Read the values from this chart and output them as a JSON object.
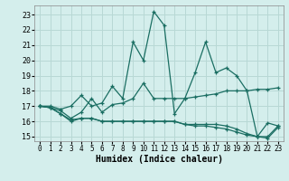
{
  "title": "",
  "xlabel": "Humidex (Indice chaleur)",
  "bg_color": "#d4eeec",
  "grid_color": "#b8d8d5",
  "line_color": "#1a6e62",
  "xlim": [
    -0.5,
    23.5
  ],
  "ylim": [
    14.7,
    23.6
  ],
  "xticks": [
    0,
    1,
    2,
    3,
    4,
    5,
    6,
    7,
    8,
    9,
    10,
    11,
    12,
    13,
    14,
    15,
    16,
    17,
    18,
    19,
    20,
    21,
    22,
    23
  ],
  "yticks": [
    15,
    16,
    17,
    18,
    19,
    20,
    21,
    22,
    23
  ],
  "line1_y": [
    17.0,
    17.0,
    16.8,
    17.0,
    17.7,
    17.0,
    17.2,
    18.3,
    17.5,
    21.2,
    20.0,
    23.2,
    22.3,
    16.5,
    17.5,
    19.2,
    21.2,
    19.2,
    19.5,
    19.0,
    18.0,
    15.0,
    15.9,
    15.7
  ],
  "line2_y": [
    17.0,
    16.9,
    16.7,
    16.2,
    16.6,
    17.5,
    16.6,
    17.1,
    17.2,
    17.5,
    18.5,
    17.5,
    17.5,
    17.5,
    17.5,
    17.6,
    17.7,
    17.8,
    18.0,
    18.0,
    18.0,
    18.1,
    18.1,
    18.2
  ],
  "line3_y": [
    17.0,
    16.9,
    16.5,
    16.0,
    16.2,
    16.2,
    16.0,
    16.0,
    16.0,
    16.0,
    16.0,
    16.0,
    16.0,
    16.0,
    15.8,
    15.8,
    15.8,
    15.8,
    15.7,
    15.5,
    15.2,
    15.0,
    14.9,
    15.6
  ],
  "line4_y": [
    17.0,
    16.9,
    16.5,
    16.1,
    16.2,
    16.2,
    16.0,
    16.0,
    16.0,
    16.0,
    16.0,
    16.0,
    16.0,
    16.0,
    15.8,
    15.7,
    15.7,
    15.6,
    15.5,
    15.3,
    15.1,
    15.0,
    15.0,
    15.7
  ]
}
